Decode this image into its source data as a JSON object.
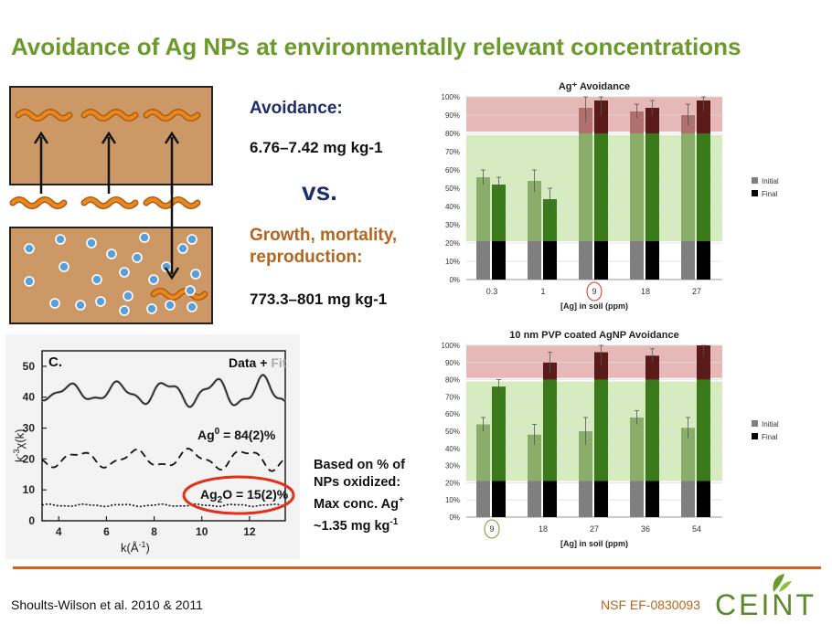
{
  "slide": {
    "title": "Avoidance of Ag NPs at environmentally relevant concentrations",
    "avoidance_label": "Avoidance:",
    "avoidance_value": "6.76–7.42 mg kg-1",
    "vs": "vs.",
    "growth_label": "Growth, mortality, reproduction:",
    "growth_value": "773.3–801 mg kg-1",
    "oxidation_note": {
      "line1": "Based on % of",
      "line2": "NPs oxidized:",
      "line3": "Max conc. Ag",
      "line3_sup": "+",
      "line4": "~1.35 mg kg",
      "line4_sup": "-1"
    },
    "citation": "Shoults-Wilson et al. 2010 & 2011",
    "grant": "NSF EF-0830093",
    "logo_text": "CEINT"
  },
  "colors": {
    "title_green": "#6a9a2a",
    "navy": "#1f2d6e",
    "orange": "#b5651d",
    "soil": "#cc9966",
    "worm": "#e8891f",
    "particle": "#5aa0d8",
    "avoid_zone": "#e6b8b8",
    "ok_zone": "#d6ecc0",
    "initial_grey": "#7f7f7f",
    "final_black": "#000000",
    "green_dark": "#3a7a1a",
    "green_light": "#8aad6a",
    "maroon": "#5a1a1a",
    "red_circle": "#e0301e"
  },
  "exafs": {
    "panel_label": "C.",
    "legend_data": "Data",
    "legend_plus": " + ",
    "legend_fit": "Fit",
    "ag0_label": "Ag",
    "ag0_sup": "0",
    "ag0_value": " = 84(2)%",
    "ag2o_label": "Ag",
    "ag2o_sub": "2",
    "ag2o_value": "O = 15(2)%",
    "ylabel": "k",
    "ylabel_sup": "-3",
    "ylabel_chi": "χ(k)",
    "xlabel": "k(Å",
    "xlabel_sup": "-1",
    "xlabel_close": ")",
    "yticks": [
      "0",
      "10",
      "20",
      "30",
      "40",
      "50"
    ],
    "xticks": [
      "4",
      "6",
      "8",
      "10",
      "12"
    ]
  },
  "chart_data": [
    {
      "type": "bar",
      "title": "Ag⁺ Avoidance",
      "xlabel": "[Ag] in soil (ppm)",
      "ylabel": "",
      "categories": [
        "0.3",
        "1",
        "9",
        "18",
        "27"
      ],
      "highlight_category": "9",
      "yticks": [
        "0%",
        "10%",
        "20%",
        "30%",
        "40%",
        "50%",
        "60%",
        "70%",
        "80%",
        "90%",
        "100%"
      ],
      "ylim": [
        0,
        100
      ],
      "series": [
        {
          "name": "Initial",
          "values": [
            56,
            54,
            94,
            92,
            90
          ]
        },
        {
          "name": "Final",
          "values": [
            52,
            44,
            98,
            94,
            98
          ]
        }
      ],
      "legend": [
        "Initial",
        "Final"
      ],
      "legend_position": "right"
    },
    {
      "type": "bar",
      "title": "10 nm PVP coated AgNP Avoidance",
      "xlabel": "[Ag] in soil (ppm)",
      "ylabel": "",
      "categories": [
        "9",
        "18",
        "27",
        "36",
        "54"
      ],
      "highlight_category": "9",
      "yticks": [
        "0%",
        "10%",
        "20%",
        "30%",
        "40%",
        "50%",
        "60%",
        "70%",
        "80%",
        "90%",
        "100%"
      ],
      "ylim": [
        0,
        100
      ],
      "series": [
        {
          "name": "Initial",
          "values": [
            54,
            48,
            50,
            58,
            52
          ]
        },
        {
          "name": "Final",
          "values": [
            76,
            90,
            96,
            94,
            100
          ]
        }
      ],
      "legend": [
        "Initial",
        "Final"
      ],
      "legend_position": "right"
    }
  ]
}
